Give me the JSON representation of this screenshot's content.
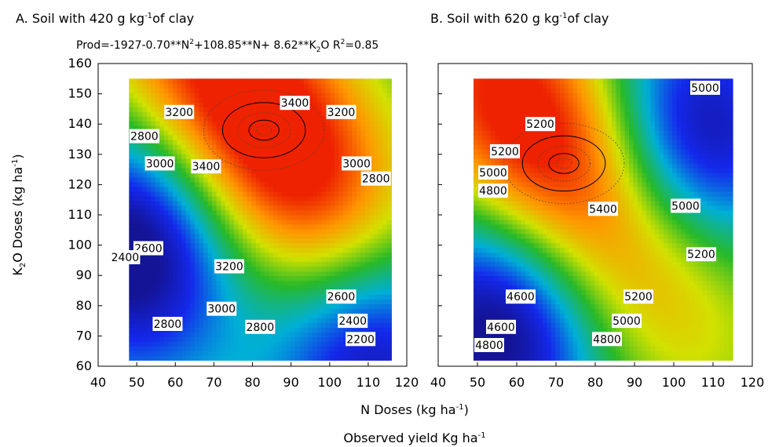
{
  "figure": {
    "panel_a_title": "A. Soil with 420 g kg",
    "panel_a_title_sup": "-1",
    "panel_a_title_tail": "of clay",
    "panel_b_title": "B. Soil with 620 g kg",
    "panel_b_title_sup": "-1",
    "panel_b_title_tail": "of clay",
    "equation": {
      "p1": "Prod=-1927-0.70**N",
      "s1": "2",
      "p2": "+108.85**N+ 8.62**K",
      "s2": "2",
      "p3": "O   R",
      "s3": "2",
      "p4": "=0.85"
    },
    "xlabel_main": "N Doses (kg ha",
    "xlabel_sup": "-1",
    "xlabel_tail": ")",
    "ylabel_main": "K",
    "ylabel_sub": "2",
    "ylabel_mid": "O Doses (kg ha",
    "ylabel_sup": "-1",
    "ylabel_tail": ")",
    "caption_main": "Observed yield Kg ha",
    "caption_sup": "-1"
  },
  "chart_data": [
    {
      "type": "heatmap",
      "title": "A. Soil with 420 g kg-1of clay",
      "xlim": [
        40,
        120
      ],
      "ylim": [
        60,
        160
      ],
      "xticks": [
        40,
        50,
        60,
        70,
        80,
        90,
        100,
        110,
        120
      ],
      "yticks": [
        60,
        70,
        80,
        90,
        100,
        110,
        120,
        130,
        140,
        150,
        160
      ],
      "data_extent": {
        "x": [
          48,
          116
        ],
        "y": [
          62,
          155
        ]
      },
      "color_low": "#1a1acc",
      "color_high": "#ee2200",
      "value_range": [
        2200,
        3450
      ],
      "peaks": [
        {
          "x": 83,
          "y": 138,
          "value": 3450
        }
      ],
      "lows": [
        {
          "x": 112,
          "y": 68,
          "value": 2150
        },
        {
          "x": 50,
          "y": 100,
          "value": 2350
        }
      ],
      "contour_labels": [
        {
          "text": "3200",
          "x": 61,
          "y": 144
        },
        {
          "text": "3400",
          "x": 91,
          "y": 147
        },
        {
          "text": "3200",
          "x": 103,
          "y": 144
        },
        {
          "text": "2800",
          "x": 52,
          "y": 136
        },
        {
          "text": "3000",
          "x": 56,
          "y": 127
        },
        {
          "text": "3400",
          "x": 68,
          "y": 126
        },
        {
          "text": "3000",
          "x": 107,
          "y": 127
        },
        {
          "text": "2800",
          "x": 112,
          "y": 122
        },
        {
          "text": "2600",
          "x": 53,
          "y": 99
        },
        {
          "text": "2400",
          "x": 47,
          "y": 96
        },
        {
          "text": "3200",
          "x": 74,
          "y": 93
        },
        {
          "text": "2600",
          "x": 103,
          "y": 83
        },
        {
          "text": "3000",
          "x": 72,
          "y": 79
        },
        {
          "text": "2800",
          "x": 58,
          "y": 74
        },
        {
          "text": "2400",
          "x": 106,
          "y": 75
        },
        {
          "text": "2800",
          "x": 82,
          "y": 73
        },
        {
          "text": "2200",
          "x": 108,
          "y": 69
        }
      ]
    },
    {
      "type": "heatmap",
      "title": "B. Soil with 620 g kg-1of clay",
      "xlim": [
        40,
        120
      ],
      "ylim": [
        60,
        160
      ],
      "xticks": [
        40,
        50,
        60,
        70,
        80,
        90,
        100,
        110,
        120
      ],
      "yticks": [
        60,
        70,
        80,
        90,
        100,
        110,
        120,
        130,
        140,
        150,
        160
      ],
      "data_extent": {
        "x": [
          49,
          115
        ],
        "y": [
          62,
          155
        ]
      },
      "color_low": "#1a1acc",
      "color_high": "#ee2200",
      "value_range": [
        4600,
        5450
      ],
      "peaks": [
        {
          "x": 72,
          "y": 127,
          "value": 5450
        }
      ],
      "lows": [
        {
          "x": 103,
          "y": 133,
          "value": 4700
        },
        {
          "x": 57,
          "y": 75,
          "value": 4550
        }
      ],
      "contour_labels": [
        {
          "text": "5000",
          "x": 108,
          "y": 152
        },
        {
          "text": "5200",
          "x": 66,
          "y": 140
        },
        {
          "text": "5200",
          "x": 57,
          "y": 131
        },
        {
          "text": "5000",
          "x": 54,
          "y": 124
        },
        {
          "text": "4800",
          "x": 54,
          "y": 118
        },
        {
          "text": "5400",
          "x": 82,
          "y": 112
        },
        {
          "text": "5000",
          "x": 103,
          "y": 113
        },
        {
          "text": "5200",
          "x": 107,
          "y": 97
        },
        {
          "text": "4600",
          "x": 61,
          "y": 83
        },
        {
          "text": "5200",
          "x": 91,
          "y": 83
        },
        {
          "text": "5000",
          "x": 88,
          "y": 75
        },
        {
          "text": "4600",
          "x": 56,
          "y": 73
        },
        {
          "text": "4800",
          "x": 83,
          "y": 69
        },
        {
          "text": "4800",
          "x": 53,
          "y": 67
        }
      ]
    }
  ]
}
